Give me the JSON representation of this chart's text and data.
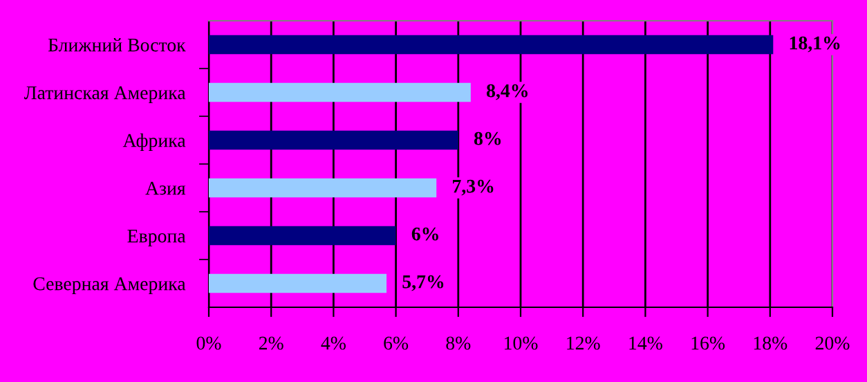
{
  "chart_data": {
    "type": "bar",
    "orientation": "horizontal",
    "categories": [
      "Ближний Восток",
      "Латинская Америка",
      "Африка",
      "Азия",
      "Европа",
      "Северная Америка"
    ],
    "values": [
      18.1,
      8.4,
      8,
      7.3,
      6,
      5.7
    ],
    "colors": [
      "#000080",
      "#99ccff",
      "#000080",
      "#99ccff",
      "#000080",
      "#99ccff"
    ],
    "value_labels": [
      "18,1%",
      "8,4%",
      "8%",
      "7,3%",
      "6%",
      "5,7%"
    ],
    "xlim": [
      0,
      20
    ],
    "xticks": [
      {
        "value": 0,
        "label": "0%"
      },
      {
        "value": 2,
        "label": "2%"
      },
      {
        "value": 4,
        "label": "4%"
      },
      {
        "value": 6,
        "label": "6%"
      },
      {
        "value": 8,
        "label": "8%"
      },
      {
        "value": 10,
        "label": "10%"
      },
      {
        "value": 12,
        "label": "12%"
      },
      {
        "value": 14,
        "label": "14%"
      },
      {
        "value": 16,
        "label": "16%"
      },
      {
        "value": 18,
        "label": "18%"
      },
      {
        "value": 20,
        "label": "20%"
      }
    ],
    "grid": "x",
    "legend": false
  }
}
